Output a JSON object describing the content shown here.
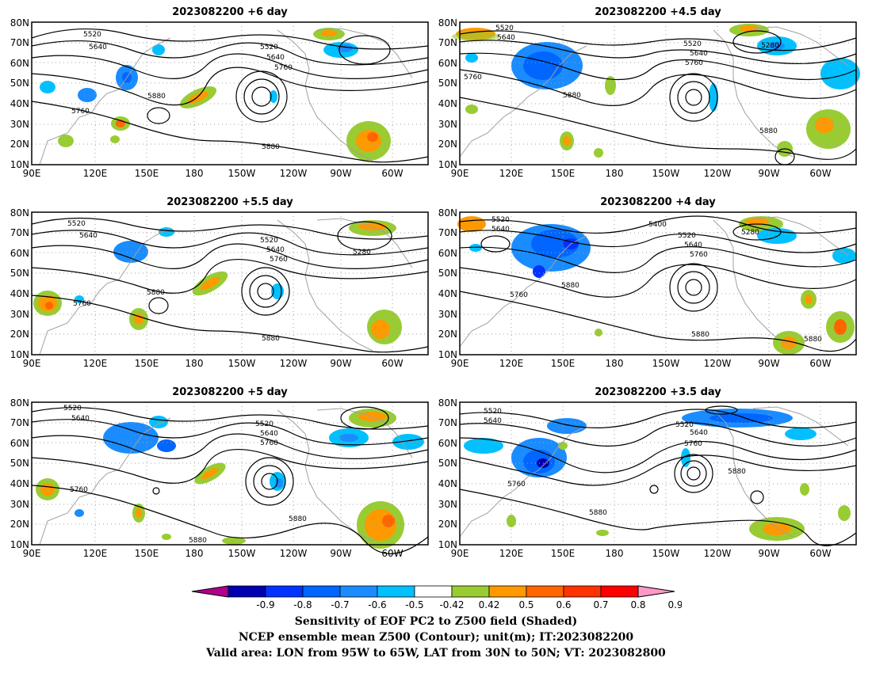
{
  "panels": [
    {
      "title": "2023082200  +6 day"
    },
    {
      "title": "2023082200  +4.5  day"
    },
    {
      "title": "2023082200  +5.5  day"
    },
    {
      "title": "2023082200  +4  day"
    },
    {
      "title": "2023082200  +5  day"
    },
    {
      "title": "2023082200  +3.5  day"
    }
  ],
  "axes": {
    "lat_labels": [
      "10N",
      "20N",
      "30N",
      "40N",
      "50N",
      "60N",
      "70N",
      "80N"
    ],
    "lon_labels": [
      "90E",
      "120E",
      "150E",
      "180",
      "150W",
      "120W",
      "90W",
      "60W"
    ]
  },
  "contour_labels": {
    "p0": [
      "5520",
      "5640",
      "5760",
      "5880",
      "5520",
      "5640",
      "5760",
      "5880"
    ],
    "p1": [
      "5520",
      "5640",
      "5760",
      "5880",
      "5520",
      "5640",
      "5760",
      "5280",
      "5880"
    ],
    "p2": [
      "5520",
      "5640",
      "5760",
      "5880",
      "5520",
      "5640",
      "5760",
      "5280",
      "5880"
    ],
    "p3": [
      "5520",
      "5640",
      "5760",
      "5880",
      "5400",
      "5520",
      "5640",
      "5760",
      "5280",
      "5880"
    ],
    "p4": [
      "5520",
      "5640",
      "5760",
      "5880",
      "5520",
      "5640",
      "5760",
      "5880"
    ],
    "p5": [
      "5520",
      "5640",
      "5760",
      "5880",
      "5520",
      "5640",
      "5760",
      "5880"
    ]
  },
  "colorbar": {
    "labels": [
      "-0.9",
      "-0.8",
      "-0.7",
      "-0.6",
      "-0.5",
      "-0.42",
      "0.42",
      "0.5",
      "0.6",
      "0.7",
      "0.8",
      "0.9"
    ],
    "colors": [
      "#0000b0",
      "#0033ff",
      "#0066ff",
      "#1a8cff",
      "#00c0ff",
      "#ffffff",
      "#99cc33",
      "#ff9900",
      "#ff6600",
      "#ff3300",
      "#ff0000"
    ],
    "left_arrow_color": "#b0008c",
    "right_arrow_color": "#ff99c8"
  },
  "captions": {
    "line1": "Sensitivity of EOF PC2 to Z500 field (Shaded)",
    "line2": "NCEP ensemble mean Z500 (Contour); unit(m); IT:2023082200",
    "line3": "Valid area: LON from 95W to 65W, LAT from 30N to 50N; VT: 2023082800"
  },
  "colors": {
    "contour": "#000000",
    "coast": "#a0a0a0",
    "grid": "#a0a0a0"
  }
}
